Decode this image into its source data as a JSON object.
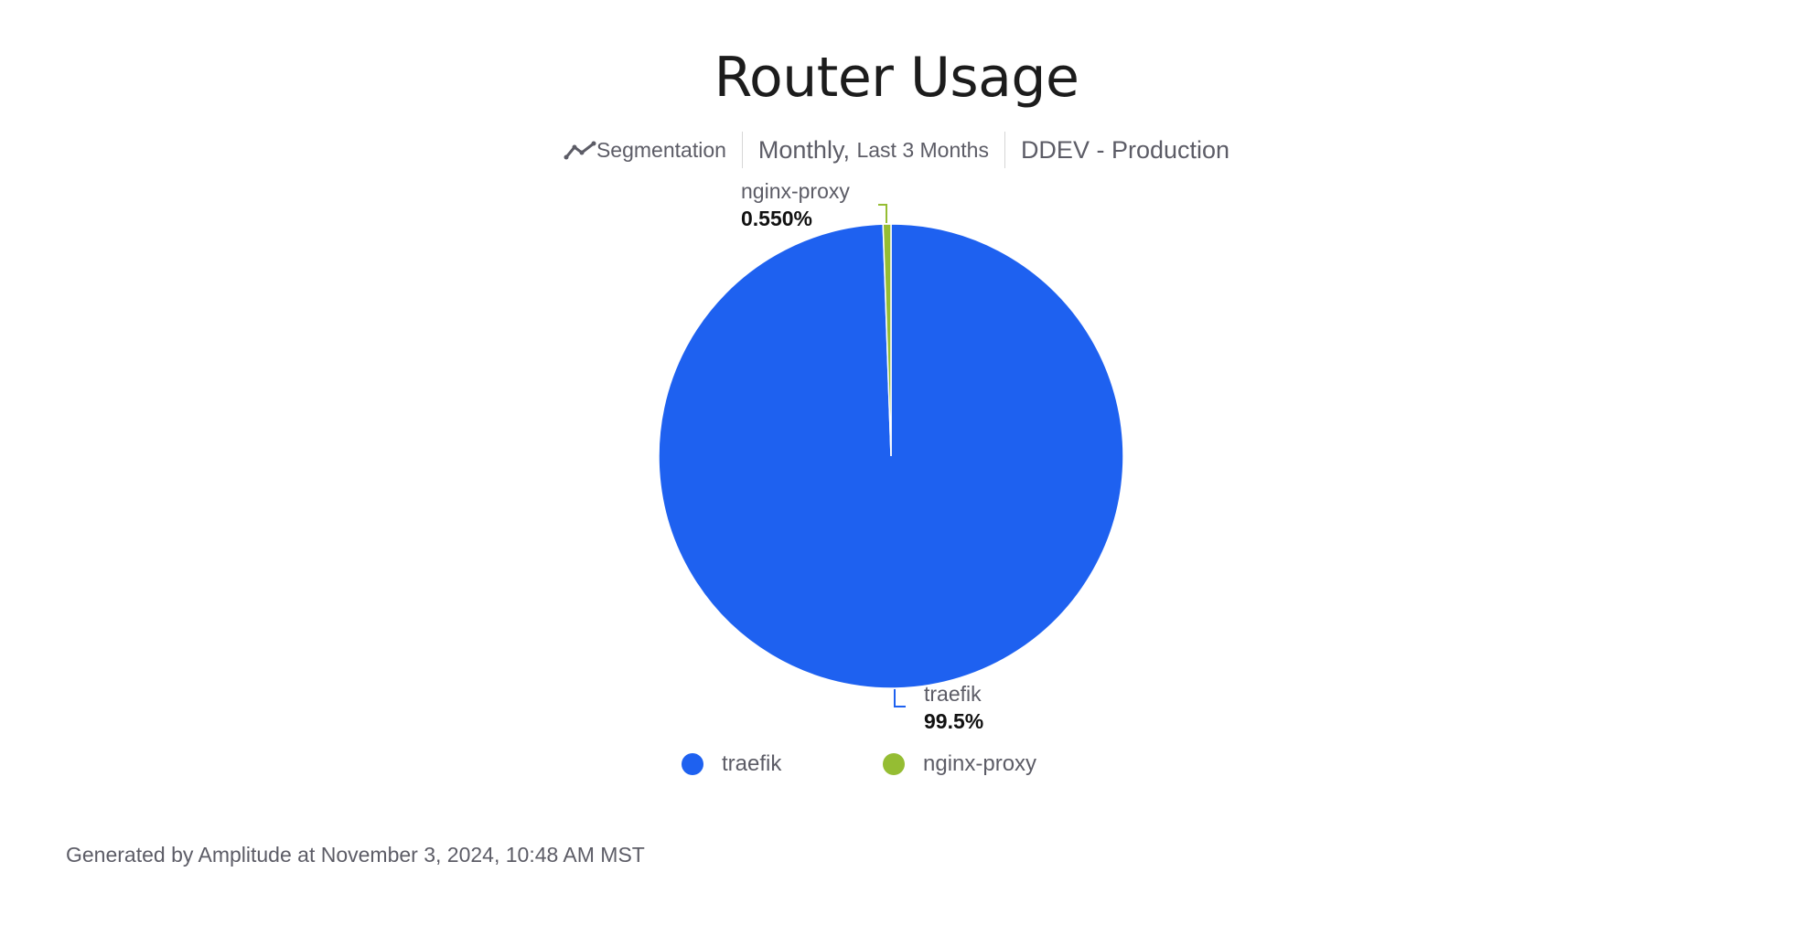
{
  "title": "Router Usage",
  "subtitle": {
    "chart_type": "Segmentation",
    "chart_type_icon": "line-chart-icon",
    "interval": "Monthly,",
    "range": "Last 3 Months",
    "project": "DDEV - Production"
  },
  "chart_data": {
    "type": "pie",
    "title": "Router Usage",
    "slices": [
      {
        "name": "traefik",
        "value": 99.5,
        "label": "99.5%",
        "color": "#1E61F0"
      },
      {
        "name": "nginx-proxy",
        "value": 0.55,
        "label": "0.550%",
        "color": "#95BD33"
      }
    ],
    "legend_placement": "bottom"
  },
  "footer": "Generated by Amplitude at November 3, 2024, 10:48 AM MST"
}
